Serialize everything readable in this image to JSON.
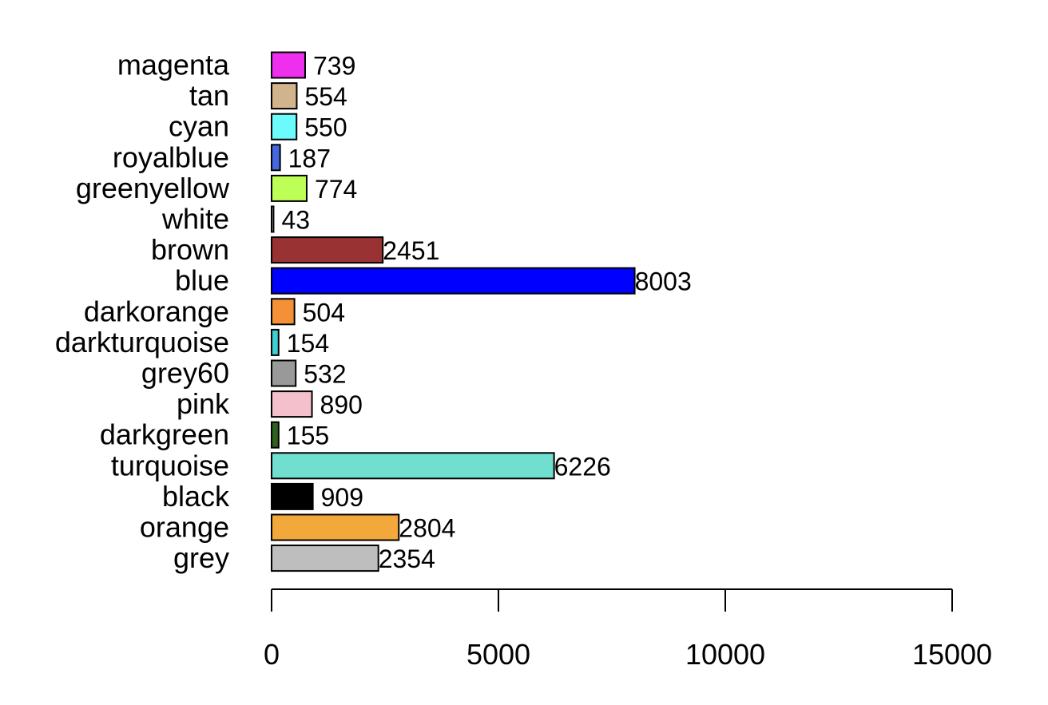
{
  "chart_data": {
    "type": "bar",
    "orientation": "horizontal",
    "title": "",
    "xlabel": "",
    "ylabel": "",
    "xlim": [
      0,
      15000
    ],
    "x_ticks": [
      0,
      5000,
      10000,
      15000
    ],
    "x_tick_labels": [
      "0",
      "5000",
      "10000",
      "15000"
    ],
    "grid": false,
    "legend": "none",
    "categories": [
      "magenta",
      "tan",
      "cyan",
      "royalblue",
      "greenyellow",
      "white",
      "brown",
      "blue",
      "darkorange",
      "darkturquoise",
      "grey60",
      "pink",
      "darkgreen",
      "turquoise",
      "black",
      "orange",
      "grey"
    ],
    "values": [
      739,
      554,
      550,
      187,
      774,
      43,
      2451,
      8003,
      504,
      154,
      532,
      890,
      155,
      6226,
      909,
      2804,
      2354
    ],
    "value_labels": [
      "739",
      "554",
      "550",
      "187",
      "774",
      "43",
      "2451",
      "8003",
      "504",
      "154",
      "532",
      "890",
      "155",
      "6226",
      "909",
      "2804",
      "2354"
    ],
    "colors": [
      "#EE30EE",
      "#D2B48C",
      "#6CFBFD",
      "#4468E1",
      "#BEFF57",
      "#FFFFFF",
      "#993333",
      "#0000FF",
      "#F49138",
      "#40CED2",
      "#999999",
      "#F4C0CB",
      "#2F6221",
      "#70DFD0",
      "#000000",
      "#F3A83B",
      "#BEBEBE"
    ]
  }
}
